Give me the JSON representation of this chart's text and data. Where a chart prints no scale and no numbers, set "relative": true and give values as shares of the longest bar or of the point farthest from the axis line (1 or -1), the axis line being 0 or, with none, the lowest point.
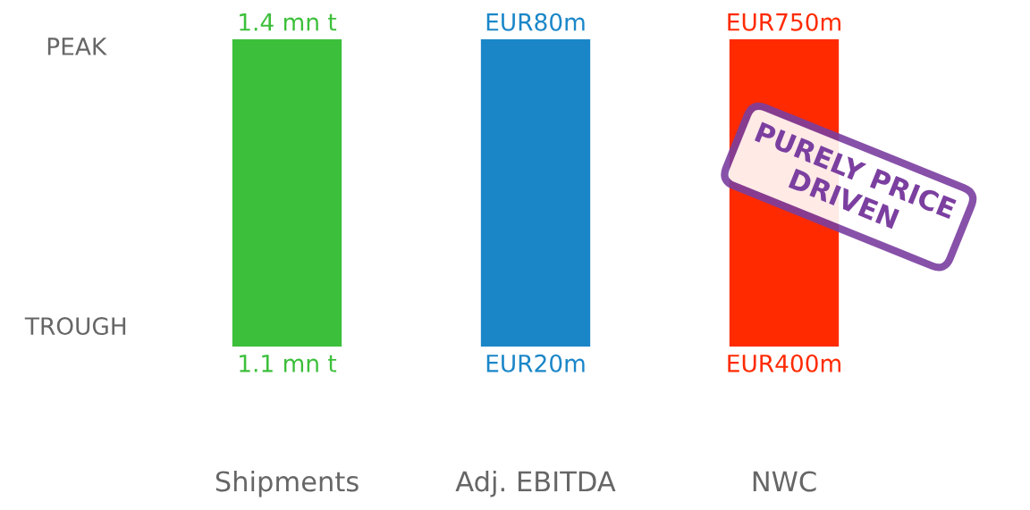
{
  "chart_data": {
    "type": "bar",
    "relative": true,
    "categories": [
      "Shipments",
      "Adj. EBITDA",
      "NWC"
    ],
    "values": [
      1,
      1,
      1
    ],
    "colors": [
      "#3cbf3a",
      "#1a86c8",
      "#ff2a00"
    ],
    "annotations": [
      "PEAK",
      "TROUGH",
      "1.4 mn t",
      "1.1 mn t",
      "EUR80m",
      "EUR20m",
      "EUR750m",
      "EUR400m",
      "PURELY PRICE\nDRIVEN"
    ],
    "grid": false,
    "legend": false
  }
}
